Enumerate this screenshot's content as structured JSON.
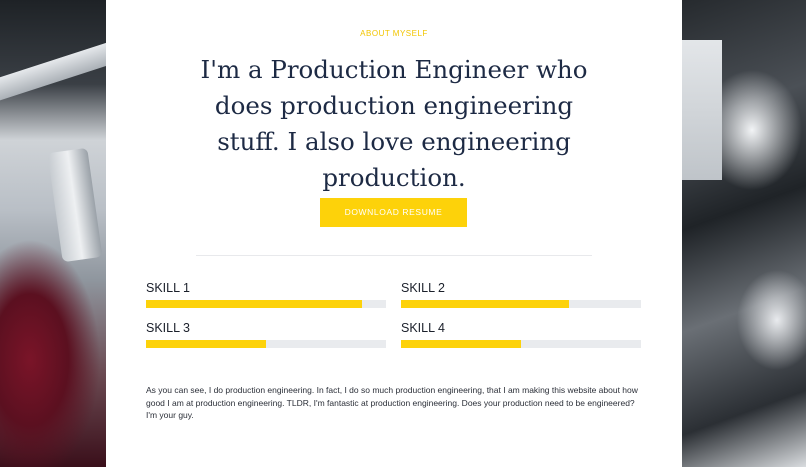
{
  "section": {
    "eyebrow": "ABOUT MYSELF",
    "headline": "I'm a Production Engineer who does production engineering stuff. I also love engineering production.",
    "download_label": "DOWNLOAD RESUME"
  },
  "skills": [
    {
      "label": "SKILL 1",
      "level": 0.9
    },
    {
      "label": "SKILL 2",
      "level": 0.7
    },
    {
      "label": "SKILL 3",
      "level": 0.5
    },
    {
      "label": "SKILL 4",
      "level": 0.5
    }
  ],
  "about": {
    "text": "As you can see, I do production engineering. In fact, I do so much production engineering, that I am making this website about how good I am at production engineering. TLDR, I'm fantastic at production engineering. Does your production need to be engineered? I'm your guy."
  },
  "colors": {
    "accent": "#fdd20a",
    "heading": "#1d2a44",
    "track": "#e9ebee"
  }
}
